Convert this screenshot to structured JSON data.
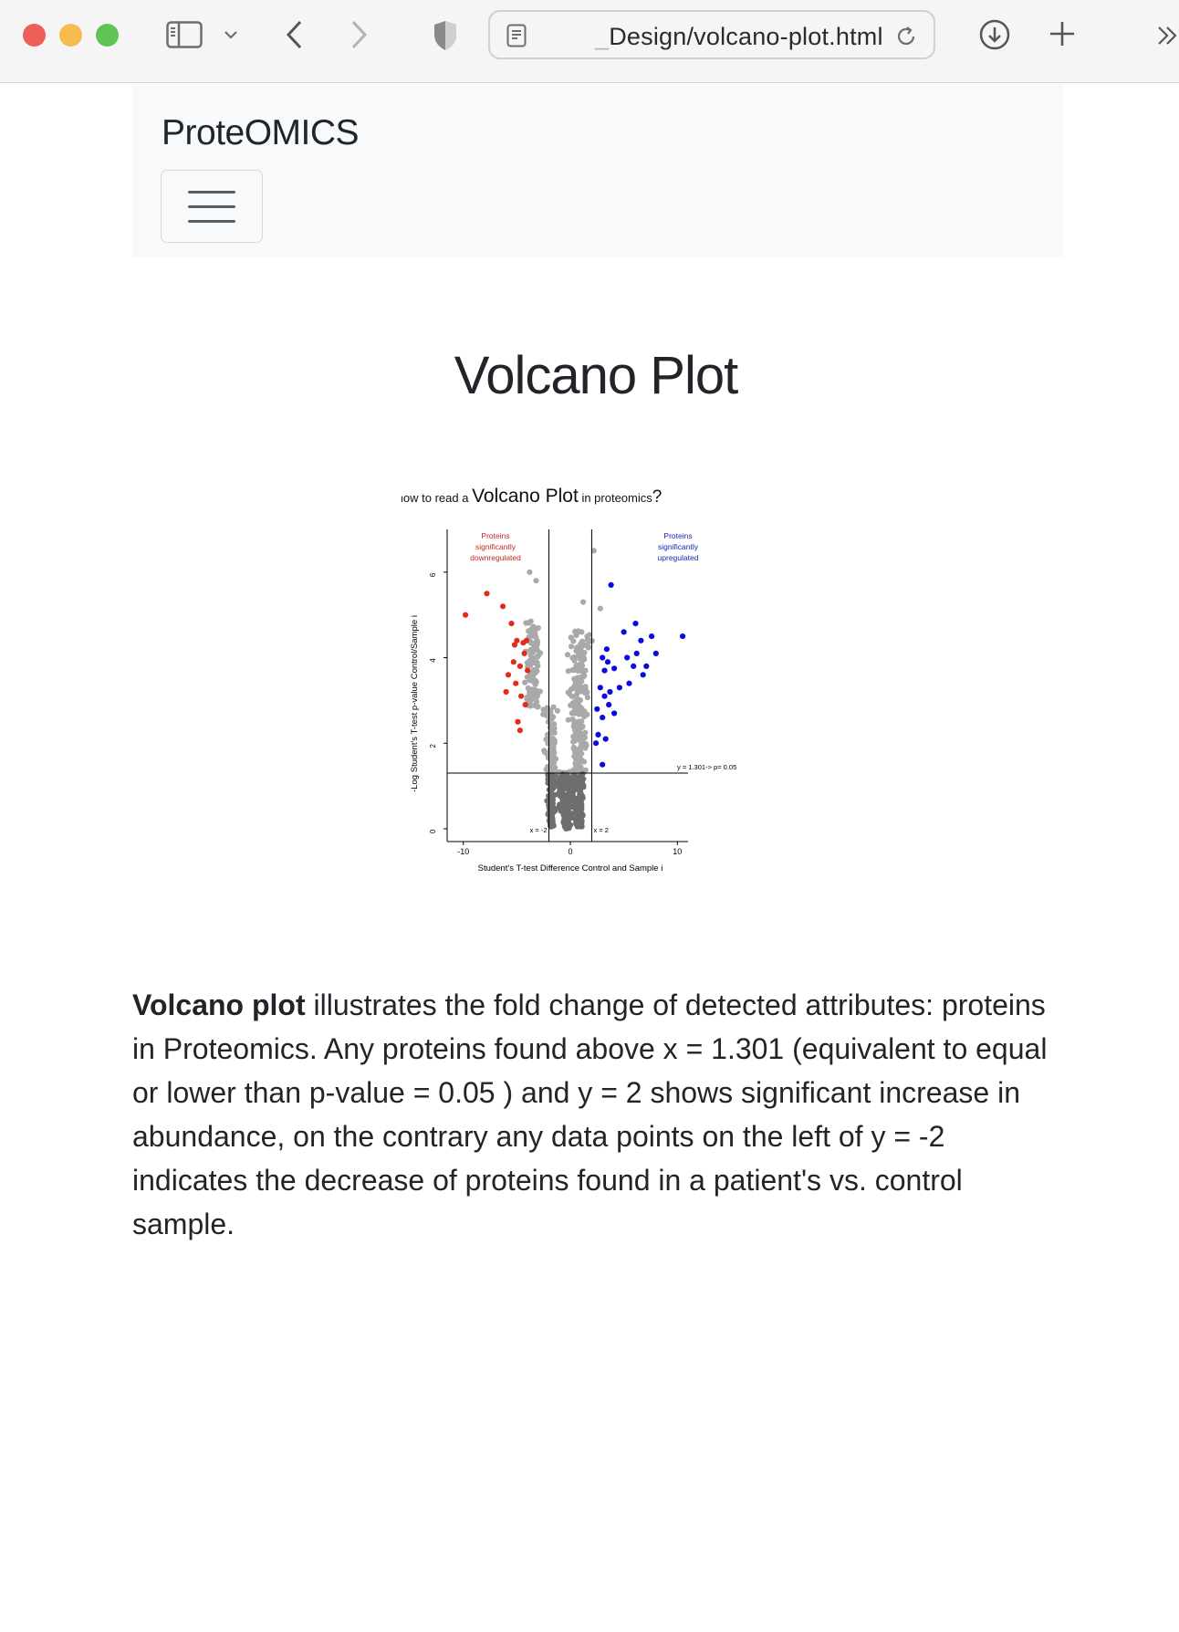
{
  "browser": {
    "address_url_prefix": "_",
    "address_url": "Design/volcano-plot.html"
  },
  "navbar": {
    "brand": "ProteOMICS"
  },
  "main": {
    "title": "Volcano Plot",
    "description_bold": "Volcano plot",
    "description_rest": " illustrates the fold change of detected attributes: proteins in Proteomics. Any proteins found above x = 1.301 (equivalent to equal or lower than p-value = 0.05 ) and y = 2 shows significant increase in abundance, on the contrary any data points on the left of y = -2 indicates the decrease of proteins found in a patient's vs. control sample."
  },
  "chart_data": {
    "type": "scatter",
    "title_pre": "how to read a ",
    "title_main": "Volcano Plot",
    "title_post": " in proteomics",
    "title_q": "?",
    "xlabel": "Student's T-test Difference Control and Sample i",
    "ylabel": "-Log Student's T-test p-value Control/Sample i",
    "xlim": [
      -11,
      11
    ],
    "ylim": [
      -0.3,
      7
    ],
    "x_ticks": [
      "-10",
      "0",
      "10"
    ],
    "y_ticks": [
      "0",
      "2",
      "4",
      "6"
    ],
    "annotation_down": [
      "Proteins",
      "significantly",
      "downregulated"
    ],
    "annotation_up": [
      "Proteins",
      "significantly",
      "upregulated"
    ],
    "hline_label": "y = 1.301-> p= 0.05",
    "vline_left_label": "x = -2",
    "vline_right_label": "x = 2",
    "threshold_y": 1.301,
    "threshold_x": [
      -2,
      2
    ],
    "colors": {
      "down": "#e32b1c",
      "up": "#0a0ae0",
      "ns_high": "#a9a9a9",
      "ns_low": "#6e6e6e"
    },
    "series": [
      {
        "name": "downregulated",
        "points": [
          [
            -9.8,
            5.0
          ],
          [
            -7.8,
            5.5
          ],
          [
            -6.3,
            5.2
          ],
          [
            -5.5,
            4.8
          ],
          [
            -5.0,
            4.4
          ],
          [
            -5.2,
            4.3
          ],
          [
            -4.4,
            4.35
          ],
          [
            -4.1,
            4.4
          ],
          [
            -4.3,
            4.1
          ],
          [
            -5.3,
            3.9
          ],
          [
            -4.7,
            3.8
          ],
          [
            -4.0,
            3.7
          ],
          [
            -5.8,
            3.6
          ],
          [
            -5.1,
            3.4
          ],
          [
            -6.0,
            3.2
          ],
          [
            -4.6,
            3.1
          ],
          [
            -4.2,
            2.9
          ],
          [
            -4.9,
            2.5
          ],
          [
            -4.7,
            2.3
          ]
        ]
      },
      {
        "name": "upregulated",
        "points": [
          [
            3.8,
            5.7
          ],
          [
            6.1,
            4.8
          ],
          [
            5.0,
            4.6
          ],
          [
            7.6,
            4.5
          ],
          [
            6.6,
            4.4
          ],
          [
            10.5,
            4.5
          ],
          [
            8.0,
            4.1
          ],
          [
            3.4,
            4.2
          ],
          [
            3.0,
            4.0
          ],
          [
            3.5,
            3.9
          ],
          [
            3.2,
            3.7
          ],
          [
            4.1,
            3.75
          ],
          [
            5.3,
            4.0
          ],
          [
            6.2,
            4.1
          ],
          [
            5.9,
            3.8
          ],
          [
            6.8,
            3.6
          ],
          [
            7.1,
            3.8
          ],
          [
            5.5,
            3.4
          ],
          [
            4.6,
            3.3
          ],
          [
            3.7,
            3.2
          ],
          [
            2.8,
            3.3
          ],
          [
            3.2,
            3.1
          ],
          [
            3.6,
            2.9
          ],
          [
            2.5,
            2.8
          ],
          [
            4.1,
            2.7
          ],
          [
            3.0,
            2.6
          ],
          [
            2.6,
            2.2
          ],
          [
            3.3,
            2.1
          ],
          [
            2.4,
            2.0
          ],
          [
            3.0,
            1.5
          ]
        ]
      }
    ]
  }
}
